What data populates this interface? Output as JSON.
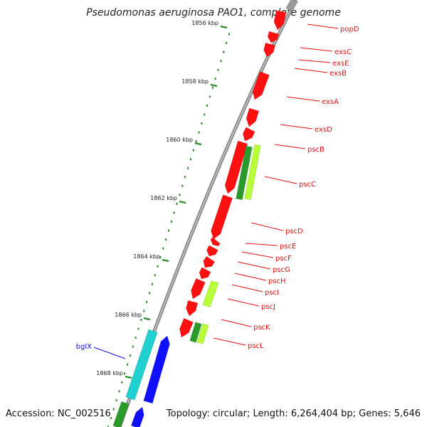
{
  "title": "Pseudomonas aeruginosa PAO1, complete genome",
  "accession": "Accession: NC_002516",
  "summary": "Topology: circular; Length: 6,264,404 bp; Genes: 5,646",
  "scale_labels": [
    "1856 kbp",
    "1858 kbp",
    "1860 kbp",
    "1862 kbp",
    "1864 kbp",
    "1866 kbp",
    "1868 kbp"
  ],
  "colors": {
    "backbone": "#8a8a8a",
    "red_gene": "#ff1010",
    "green_gene": "#2a9a2a",
    "lime_gene": "#b8ff3a",
    "cyan_gene": "#20d0d0",
    "blue_gene": "#1010ff",
    "scale_dot": "#2a8a2a",
    "red_label": "#e01010",
    "blue_label": "#1010e0"
  },
  "red_gene_labels": [
    "popD",
    "exsC",
    "exsE",
    "exsB",
    "exsA",
    "exsD",
    "pscB",
    "pscC",
    "pscD",
    "pscE",
    "pscF",
    "pscG",
    "pscH",
    "pscI",
    "pscJ",
    "pscK",
    "pscL"
  ],
  "blue_gene_labels": [
    "bglX"
  ]
}
